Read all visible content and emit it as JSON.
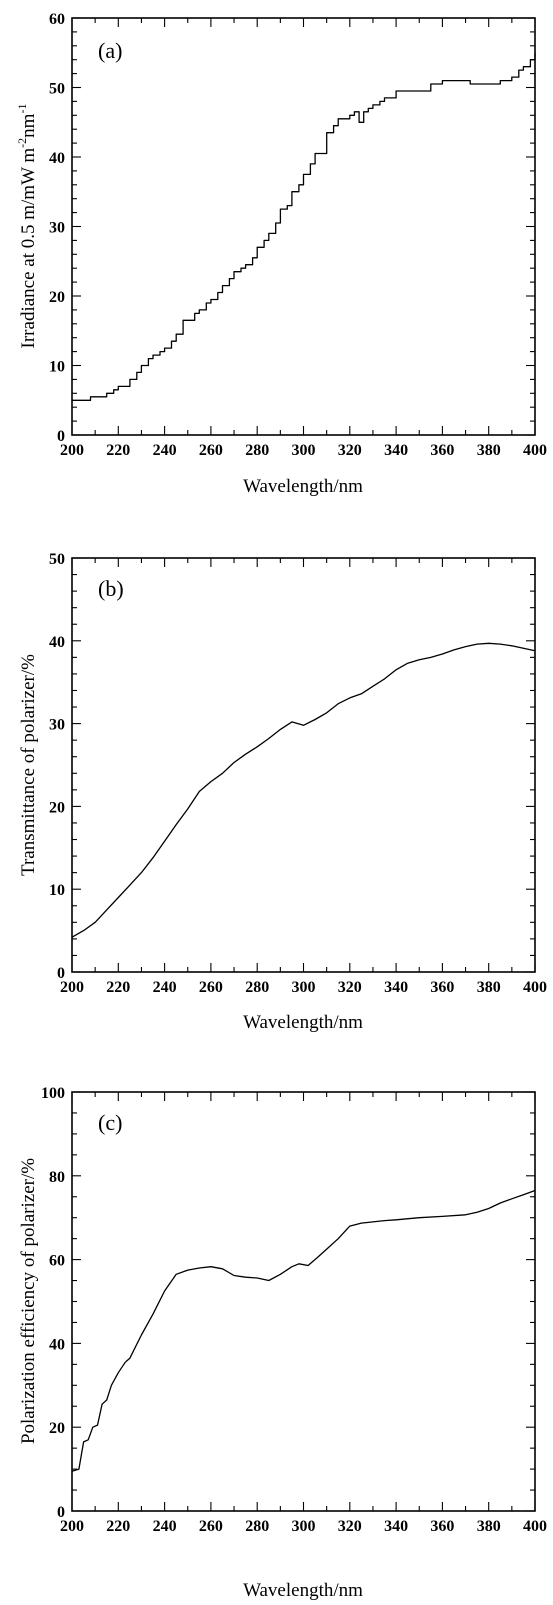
{
  "chart_data": [
    {
      "type": "line",
      "panel_label": "(a)",
      "xlabel": "Wavelength/nm",
      "ylabel": "Irradiance at 0.5 m/mW m-2nm-1",
      "ylabel_parts": {
        "base": "Irradiance at 0.5 m/mW m",
        "sup1": "-2",
        "mid": "nm",
        "sup2": "-1"
      },
      "xlim": [
        200,
        400
      ],
      "ylim": [
        0,
        60
      ],
      "x_ticks": [
        200,
        220,
        240,
        260,
        280,
        300,
        320,
        340,
        360,
        380,
        400
      ],
      "y_ticks": [
        0,
        10,
        20,
        30,
        40,
        50,
        60
      ],
      "step": true,
      "x": [
        200,
        205,
        208,
        210,
        215,
        218,
        220,
        225,
        228,
        230,
        233,
        235,
        238,
        240,
        243,
        245,
        248,
        250,
        253,
        255,
        258,
        260,
        263,
        265,
        268,
        270,
        273,
        275,
        278,
        280,
        283,
        285,
        288,
        290,
        293,
        295,
        298,
        300,
        303,
        305,
        308,
        310,
        313,
        315,
        318,
        320,
        322,
        324,
        326,
        328,
        330,
        333,
        335,
        338,
        340,
        345,
        350,
        355,
        360,
        365,
        370,
        372,
        375,
        378,
        380,
        385,
        390,
        393,
        395,
        398,
        400
      ],
      "y": [
        5,
        5,
        5.5,
        5.5,
        6,
        6.5,
        7,
        8,
        9,
        10,
        11,
        11.5,
        12,
        12.5,
        13.5,
        14.5,
        16.5,
        16.5,
        17.5,
        18,
        19,
        19.5,
        20.5,
        21.5,
        22.5,
        23.5,
        24,
        24.5,
        25.5,
        27,
        28,
        29,
        30.5,
        32.5,
        33,
        35,
        36,
        37.5,
        39,
        40.5,
        40.5,
        43.5,
        44.5,
        45.5,
        45.5,
        46,
        46.5,
        45,
        46.5,
        47,
        47.5,
        48,
        48.5,
        48.5,
        49.5,
        49.5,
        49.5,
        50.5,
        51,
        51,
        51,
        50.5,
        50.5,
        50.5,
        50.5,
        51,
        51.5,
        52.5,
        53,
        54,
        55
      ]
    },
    {
      "type": "line",
      "panel_label": "(b)",
      "xlabel": "Wavelength/nm",
      "ylabel": "Transmittance of polarizer/%",
      "xlim": [
        200,
        400
      ],
      "ylim": [
        0,
        50
      ],
      "x_ticks": [
        200,
        220,
        240,
        260,
        280,
        300,
        320,
        340,
        360,
        380,
        400
      ],
      "y_ticks": [
        0,
        10,
        20,
        30,
        40,
        50
      ],
      "step": false,
      "x": [
        200,
        205,
        210,
        215,
        220,
        225,
        230,
        235,
        240,
        245,
        250,
        255,
        260,
        265,
        270,
        275,
        280,
        285,
        290,
        295,
        300,
        305,
        310,
        315,
        320,
        325,
        330,
        335,
        340,
        345,
        350,
        355,
        360,
        365,
        370,
        375,
        380,
        385,
        390,
        395,
        400
      ],
      "y": [
        4.2,
        5,
        6,
        7.5,
        9,
        10.5,
        12,
        13.8,
        15.8,
        17.8,
        19.7,
        21.8,
        23,
        24,
        25.3,
        26.3,
        27.2,
        28.2,
        29.3,
        30.2,
        29.8,
        30.5,
        31.3,
        32.4,
        33.1,
        33.6,
        34.5,
        35.4,
        36.5,
        37.3,
        37.7,
        38,
        38.4,
        38.9,
        39.3,
        39.6,
        39.7,
        39.6,
        39.4,
        39.1,
        38.8
      ]
    },
    {
      "type": "line",
      "panel_label": "(c)",
      "xlabel": "Wavelength/nm",
      "ylabel": "Polarization efficiency of polarizer/%",
      "xlim": [
        200,
        400
      ],
      "ylim": [
        0,
        100
      ],
      "x_ticks": [
        200,
        220,
        240,
        260,
        280,
        300,
        320,
        340,
        360,
        380,
        400
      ],
      "y_ticks": [
        0,
        20,
        40,
        60,
        80,
        100
      ],
      "step": false,
      "x": [
        200,
        203,
        205,
        207,
        209,
        211,
        213,
        215,
        217,
        220,
        223,
        225,
        230,
        235,
        240,
        245,
        250,
        255,
        260,
        265,
        270,
        275,
        280,
        285,
        290,
        295,
        298,
        302,
        306,
        310,
        315,
        320,
        325,
        330,
        335,
        340,
        350,
        360,
        370,
        375,
        380,
        385,
        390,
        395,
        400
      ],
      "y": [
        9.5,
        10,
        16.5,
        17,
        20,
        20.5,
        25.5,
        26.5,
        30,
        33,
        35.5,
        36.5,
        42,
        47,
        52.5,
        56.5,
        57.5,
        58,
        58.3,
        57.8,
        56.2,
        55.8,
        55.6,
        55,
        56.5,
        58.3,
        59,
        58.6,
        60.5,
        62.5,
        65,
        68,
        68.7,
        69,
        69.3,
        69.5,
        70,
        70.3,
        70.7,
        71.3,
        72.2,
        73.5,
        74.5,
        75.5,
        76.5
      ]
    }
  ]
}
